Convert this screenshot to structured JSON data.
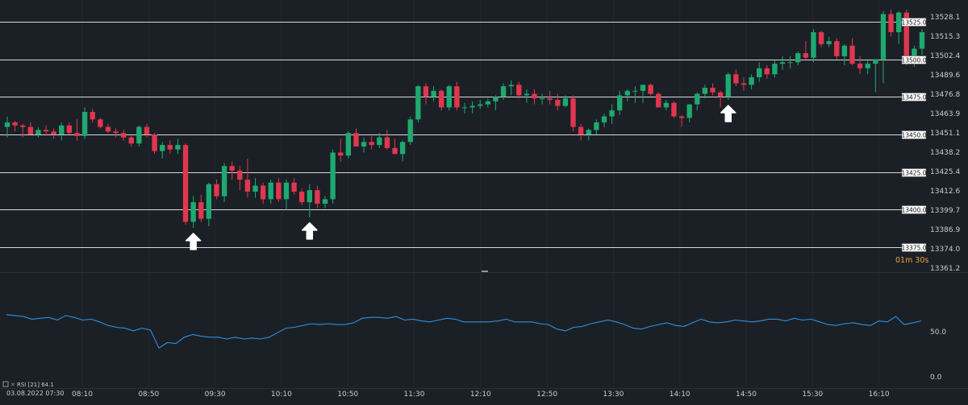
{
  "colors": {
    "background": "#1b2026",
    "up": "#1fa971",
    "down": "#e0374f",
    "rsi_line": "#2f8fe0",
    "level_line": "#d8dadc",
    "text": "#c9ccd0",
    "timer_minutes": "#e8a33d"
  },
  "indicator_label": "RSI [21] 64.1",
  "timer": {
    "minutes": "01m",
    "seconds": "30s"
  },
  "date_label": "03.08.2022 07:30",
  "chart_data": [
    {
      "type": "candlestick",
      "instrument": "",
      "title": "",
      "ylim": [
        13361.2,
        13534.0
      ],
      "price_ticks": [
        "13528.1",
        "13515.3",
        "13502.4",
        "13489.6",
        "13476.8",
        "13463.9",
        "13451.1",
        "13438.2",
        "13425.4",
        "13412.6",
        "13399.7",
        "13386.9",
        "13374.0",
        "13361.2"
      ],
      "levels": [
        "13525.0",
        "13500.0",
        "13475.0",
        "13450.0",
        "13425.0",
        "13400.0",
        "13375.0"
      ],
      "time_ticks": [
        "08:10",
        "08:50",
        "09:30",
        "10:10",
        "10:50",
        "11:30",
        "12:10",
        "12:50",
        "13:30",
        "14:10",
        "14:50",
        "15:30",
        "16:10"
      ],
      "arrows_at_index": [
        24,
        39,
        93
      ],
      "candles": [
        [
          13455,
          13462,
          13448,
          13458
        ],
        [
          13458,
          13459,
          13452,
          13456
        ],
        [
          13456,
          13457,
          13448,
          13455
        ],
        [
          13455,
          13458,
          13450,
          13450
        ],
        [
          13450,
          13455,
          13448,
          13453
        ],
        [
          13453,
          13456,
          13449,
          13452
        ],
        [
          13452,
          13454,
          13447,
          13450
        ],
        [
          13450,
          13458,
          13446,
          13456
        ],
        [
          13456,
          13458,
          13450,
          13451
        ],
        [
          13451,
          13460,
          13446,
          13449
        ],
        [
          13449,
          13468,
          13447,
          13465
        ],
        [
          13465,
          13467,
          13458,
          13460
        ],
        [
          13460,
          13461,
          13454,
          13455
        ],
        [
          13455,
          13457,
          13451,
          13452
        ],
        [
          13452,
          13454,
          13448,
          13451
        ],
        [
          13451,
          13453,
          13446,
          13448
        ],
        [
          13448,
          13449,
          13442,
          13444
        ],
        [
          13444,
          13456,
          13442,
          13455
        ],
        [
          13455,
          13457,
          13448,
          13450
        ],
        [
          13450,
          13451,
          13437,
          13439
        ],
        [
          13439,
          13445,
          13434,
          13443
        ],
        [
          13443,
          13446,
          13437,
          13440
        ],
        [
          13440,
          13447,
          13437,
          13443
        ],
        [
          13443,
          13444,
          13390,
          13392
        ],
        [
          13392,
          13409,
          13388,
          13405
        ],
        [
          13405,
          13410,
          13392,
          13394
        ],
        [
          13394,
          13418,
          13389,
          13417
        ],
        [
          13417,
          13420,
          13407,
          13409
        ],
        [
          13409,
          13431,
          13405,
          13429
        ],
        [
          13429,
          13432,
          13420,
          13426
        ],
        [
          13426,
          13429,
          13413,
          13420
        ],
        [
          13420,
          13434,
          13408,
          13412
        ],
        [
          13412,
          13421,
          13408,
          13416
        ],
        [
          13416,
          13418,
          13404,
          13407
        ],
        [
          13407,
          13420,
          13404,
          13418
        ],
        [
          13418,
          13421,
          13405,
          13407
        ],
        [
          13407,
          13420,
          13400,
          13418
        ],
        [
          13418,
          13421,
          13410,
          13412
        ],
        [
          13412,
          13414,
          13403,
          13405
        ],
        [
          13405,
          13417,
          13395,
          13413
        ],
        [
          13413,
          13416,
          13401,
          13404
        ],
        [
          13404,
          13409,
          13401,
          13407
        ],
        [
          13407,
          13440,
          13404,
          13438
        ],
        [
          13438,
          13447,
          13432,
          13436
        ],
        [
          13436,
          13452,
          13434,
          13451
        ],
        [
          13451,
          13454,
          13442,
          13442
        ],
        [
          13442,
          13448,
          13438,
          13445
        ],
        [
          13445,
          13449,
          13440,
          13443
        ],
        [
          13443,
          13451,
          13441,
          13448
        ],
        [
          13448,
          13453,
          13440,
          13441
        ],
        [
          13441,
          13447,
          13437,
          13437
        ],
        [
          13437,
          13446,
          13432,
          13445
        ],
        [
          13445,
          13462,
          13443,
          13460
        ],
        [
          13460,
          13483,
          13458,
          13482
        ],
        [
          13482,
          13484,
          13470,
          13475
        ],
        [
          13475,
          13482,
          13472,
          13479
        ],
        [
          13479,
          13480,
          13466,
          13468
        ],
        [
          13468,
          13483,
          13466,
          13482
        ],
        [
          13482,
          13485,
          13466,
          13468
        ],
        [
          13468,
          13471,
          13464,
          13468
        ],
        [
          13468,
          13472,
          13464,
          13469
        ],
        [
          13469,
          13473,
          13467,
          13470
        ],
        [
          13470,
          13474,
          13468,
          13472
        ],
        [
          13472,
          13476,
          13466,
          13475
        ],
        [
          13475,
          13484,
          13473,
          13482
        ],
        [
          13482,
          13486,
          13476,
          13483
        ],
        [
          13483,
          13485,
          13474,
          13476
        ],
        [
          13476,
          13480,
          13471,
          13477
        ],
        [
          13477,
          13480,
          13470,
          13474
        ],
        [
          13474,
          13477,
          13470,
          13474
        ],
        [
          13474,
          13479,
          13470,
          13473
        ],
        [
          13473,
          13477,
          13466,
          13469
        ],
        [
          13469,
          13476,
          13468,
          13474
        ],
        [
          13474,
          13476,
          13452,
          13455
        ],
        [
          13455,
          13457,
          13446,
          13450
        ],
        [
          13450,
          13454,
          13446,
          13453
        ],
        [
          13453,
          13460,
          13450,
          13458
        ],
        [
          13458,
          13464,
          13455,
          13462
        ],
        [
          13462,
          13470,
          13457,
          13466
        ],
        [
          13466,
          13479,
          13463,
          13476
        ],
        [
          13476,
          13480,
          13472,
          13479
        ],
        [
          13479,
          13482,
          13471,
          13479
        ],
        [
          13479,
          13483,
          13471,
          13483
        ],
        [
          13483,
          13484,
          13476,
          13477
        ],
        [
          13477,
          13478,
          13468,
          13468
        ],
        [
          13468,
          13473,
          13466,
          13471
        ],
        [
          13471,
          13472,
          13461,
          13462
        ],
        [
          13462,
          13463,
          13455,
          13461
        ],
        [
          13461,
          13470,
          13458,
          13470
        ],
        [
          13470,
          13478,
          13466,
          13477
        ],
        [
          13477,
          13483,
          13474,
          13481
        ],
        [
          13481,
          13484,
          13476,
          13478
        ],
        [
          13478,
          13479,
          13468,
          13475
        ],
        [
          13475,
          13491,
          13473,
          13490
        ],
        [
          13490,
          13493,
          13482,
          13484
        ],
        [
          13484,
          13488,
          13479,
          13483
        ],
        [
          13483,
          13490,
          13480,
          13488
        ],
        [
          13488,
          13498,
          13485,
          13494
        ],
        [
          13494,
          13496,
          13487,
          13490
        ],
        [
          13490,
          13499,
          13488,
          13497
        ],
        [
          13497,
          13502,
          13493,
          13498
        ],
        [
          13498,
          13502,
          13494,
          13498
        ],
        [
          13498,
          13505,
          13496,
          13504
        ],
        [
          13504,
          13512,
          13500,
          13501
        ],
        [
          13501,
          13520,
          13498,
          13518
        ],
        [
          13518,
          13519,
          13508,
          13510
        ],
        [
          13510,
          13515,
          13508,
          13512
        ],
        [
          13512,
          13514,
          13500,
          13502
        ],
        [
          13502,
          13510,
          13496,
          13509
        ],
        [
          13509,
          13514,
          13496,
          13497
        ],
        [
          13497,
          13502,
          13490,
          13494
        ],
        [
          13494,
          13499,
          13490,
          13497
        ],
        [
          13497,
          13500,
          13478,
          13500
        ],
        [
          13500,
          13532,
          13484,
          13530
        ],
        [
          13530,
          13533,
          13515,
          13518
        ],
        [
          13518,
          13532,
          13510,
          13531
        ],
        [
          13531,
          13533,
          13496,
          13497
        ],
        [
          13497,
          13509,
          13495,
          13507
        ],
        [
          13507,
          13520,
          13503,
          13518
        ]
      ]
    },
    {
      "type": "line",
      "name": "RSI [21] 64.1",
      "y_ticks": [
        "50.0",
        "0.0"
      ],
      "ylim": [
        -9,
        110
      ],
      "values": [
        69,
        68,
        67,
        64,
        65,
        66,
        63,
        68,
        66,
        63,
        64,
        61,
        57,
        55,
        54,
        51,
        54,
        52,
        32,
        38,
        37,
        44,
        47,
        45,
        44,
        44,
        42,
        44,
        42,
        43,
        42,
        44,
        49,
        54,
        55,
        57,
        59,
        58,
        59,
        58,
        58,
        60,
        65,
        66,
        66,
        65,
        67,
        63,
        64,
        62,
        61,
        63,
        65,
        64,
        61,
        61,
        61,
        61,
        62,
        64,
        61,
        61,
        61,
        59,
        58,
        53,
        51,
        55,
        56,
        59,
        61,
        63,
        61,
        58,
        54,
        53,
        56,
        58,
        60,
        57,
        56,
        60,
        64,
        61,
        60,
        61,
        63,
        62,
        61,
        62,
        64,
        64,
        62,
        65,
        63,
        64,
        61,
        58,
        57,
        59,
        60,
        58,
        57,
        62,
        61,
        67,
        58,
        60,
        62
      ]
    }
  ]
}
